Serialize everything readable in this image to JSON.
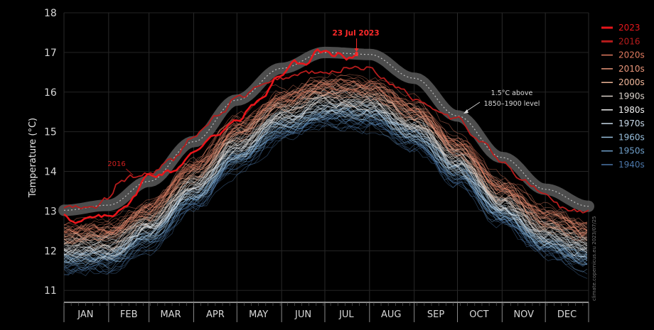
{
  "chart_data": {
    "type": "line",
    "title": "",
    "xlabel": "",
    "ylabel": "Temperature (°C)",
    "ylim": [
      10.7,
      18.0
    ],
    "yticks": [
      11,
      12,
      13,
      14,
      15,
      16,
      17,
      18
    ],
    "months": [
      "JAN",
      "FEB",
      "MAR",
      "APR",
      "MAY",
      "JUN",
      "JUL",
      "AUG",
      "SEP",
      "OCT",
      "NOV",
      "DEC"
    ],
    "legend": [
      {
        "name": "2023",
        "color": "#e8161b",
        "bold": true
      },
      {
        "name": "2016",
        "color": "#b71c1c",
        "bold": true
      },
      {
        "name": "2020s",
        "color": "#e07a5f"
      },
      {
        "name": "2010s",
        "color": "#e9967a"
      },
      {
        "name": "2000s",
        "color": "#f0b79a"
      },
      {
        "name": "1990s",
        "color": "#d8d0c8"
      },
      {
        "name": "1980s",
        "color": "#f0f0f0"
      },
      {
        "name": "1970s",
        "color": "#c7d9e8"
      },
      {
        "name": "1960s",
        "color": "#98bfdc"
      },
      {
        "name": "1950s",
        "color": "#6f9fc9"
      },
      {
        "name": "1940s",
        "color": "#4b76a8"
      }
    ],
    "series": [
      {
        "name": "1.5°C above 1850–1900 level",
        "x": [
          1,
          32,
          60,
          91,
          121,
          152,
          182,
          213,
          244,
          274,
          305,
          335,
          365
        ],
        "values": [
          13.02,
          13.15,
          13.75,
          14.75,
          15.8,
          16.6,
          17.0,
          16.95,
          16.35,
          15.4,
          14.35,
          13.55,
          13.12
        ]
      },
      {
        "name": "2023",
        "x": [
          1,
          10,
          20,
          32,
          45,
          60,
          75,
          91,
          105,
          121,
          135,
          152,
          160,
          170,
          176,
          182,
          187,
          192,
          197,
          204
        ],
        "values": [
          12.95,
          12.7,
          12.8,
          12.85,
          13.2,
          13.9,
          14.0,
          14.45,
          14.95,
          15.25,
          15.75,
          16.45,
          16.75,
          16.7,
          17.05,
          17.0,
          16.88,
          17.02,
          16.9,
          16.96
        ]
      },
      {
        "name": "2016",
        "x": [
          1,
          20,
          32,
          40,
          50,
          60,
          75,
          91,
          110,
          121,
          140,
          152,
          170,
          182,
          200,
          213,
          220,
          235,
          244,
          260,
          274,
          290,
          305,
          320,
          335,
          350,
          365
        ],
        "values": [
          13.1,
          13.05,
          13.3,
          13.75,
          13.85,
          13.95,
          14.25,
          14.9,
          15.45,
          15.85,
          16.15,
          16.35,
          16.5,
          16.45,
          16.65,
          16.62,
          16.4,
          16.1,
          15.85,
          15.6,
          15.3,
          14.8,
          14.2,
          13.75,
          13.4,
          13.05,
          12.95
        ]
      }
    ],
    "annotations": [
      {
        "id": "peak",
        "text": "23 Jul 2023",
        "x": 204,
        "y": 16.96
      },
      {
        "id": "2016",
        "text": "2016",
        "x": 48,
        "y": 13.85
      },
      {
        "id": "level_line1",
        "text": "1.5°C above",
        "x": 273,
        "y": 15.6
      },
      {
        "id": "level_line2",
        "text": "1850–1900 level",
        "x": 273,
        "y": 15.6
      }
    ],
    "watermark": "climate.copernicus.eu 2023/07/25"
  }
}
